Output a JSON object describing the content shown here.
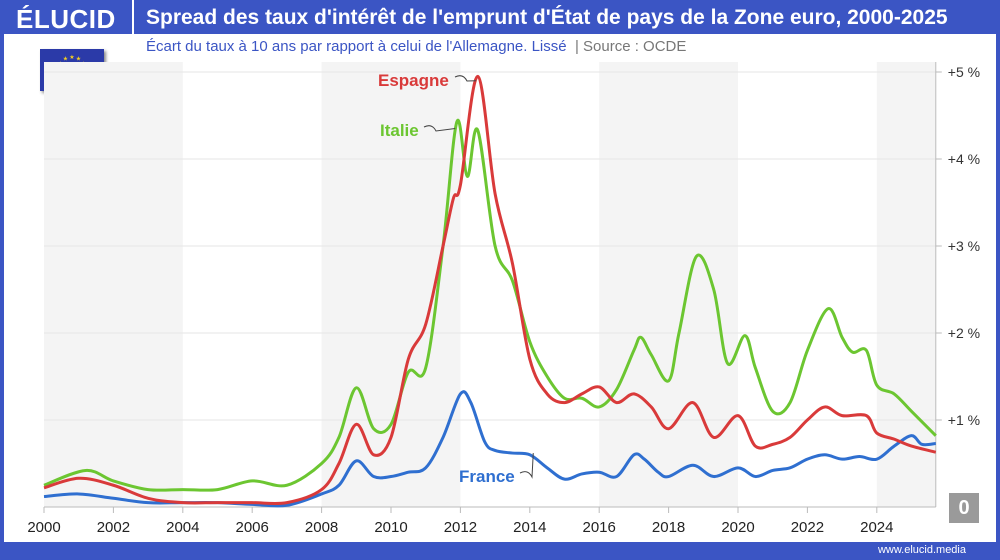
{
  "header": {
    "logo": "ÉLUCID",
    "title": "Spread des taux d'intérêt de l'emprunt d'État de pays de la Zone euro, 2000-2025",
    "subtitle": "Écart du taux à 10 ans par rapport à celui de l'Allemagne. Lissé",
    "source": "|  Source : OCDE"
  },
  "footer": {
    "url": "www.elucid.media"
  },
  "zero_badge": "0",
  "colors": {
    "frame": "#3b55c4",
    "Espagne": "#d93a3a",
    "Italie": "#6cc631",
    "France": "#2f6fd0"
  },
  "chart_data": {
    "type": "line",
    "xlim": [
      2000,
      2025.7
    ],
    "ylim": [
      0,
      5
    ],
    "x_ticks": [
      "2000",
      "2002",
      "2004",
      "2006",
      "2008",
      "2010",
      "2012",
      "2014",
      "2016",
      "2018",
      "2020",
      "2022",
      "2024"
    ],
    "y_ticks": [
      "+1 %",
      "+2 %",
      "+3 %",
      "+4 %",
      "+5 %"
    ],
    "grid": "horizontal",
    "shaded_bands": [
      [
        2000,
        2004
      ],
      [
        2008,
        2012
      ],
      [
        2016,
        2020
      ],
      [
        2024,
        2025.7
      ]
    ],
    "series": [
      {
        "name": "Espagne",
        "x": [
          2000,
          2001,
          2002,
          2003,
          2004,
          2005,
          2006,
          2007,
          2008,
          2008.5,
          2009,
          2009.5,
          2010,
          2010.5,
          2011,
          2011.5,
          2011.8,
          2012,
          2012.5,
          2013,
          2013.5,
          2014,
          2014.5,
          2015,
          2015.5,
          2016,
          2016.5,
          2017,
          2017.5,
          2018,
          2018.7,
          2019.3,
          2020,
          2020.5,
          2021,
          2021.5,
          2022,
          2022.5,
          2023,
          2023.7,
          2024,
          2024.5,
          2025,
          2025.7
        ],
        "y": [
          0.22,
          0.33,
          0.25,
          0.1,
          0.05,
          0.05,
          0.05,
          0.05,
          0.2,
          0.5,
          0.95,
          0.6,
          0.8,
          1.7,
          2.1,
          3.0,
          3.55,
          3.7,
          4.95,
          3.6,
          2.8,
          1.7,
          1.3,
          1.2,
          1.3,
          1.38,
          1.2,
          1.3,
          1.15,
          0.9,
          1.2,
          0.8,
          1.05,
          0.7,
          0.72,
          0.8,
          1.0,
          1.15,
          1.05,
          1.05,
          0.85,
          0.78,
          0.7,
          0.63
        ]
      },
      {
        "name": "Italie",
        "x": [
          2000,
          2001.2,
          2002,
          2003,
          2004,
          2005,
          2006,
          2007,
          2008,
          2008.5,
          2009,
          2009.5,
          2010,
          2010.5,
          2011,
          2011.5,
          2011.9,
          2012.2,
          2012.5,
          2013,
          2013.5,
          2014,
          2014.5,
          2015,
          2015.5,
          2016,
          2016.5,
          2017,
          2017.2,
          2017.5,
          2018,
          2018.3,
          2018.8,
          2019.3,
          2019.7,
          2020.2,
          2020.5,
          2021,
          2021.5,
          2022,
          2022.6,
          2023,
          2023.3,
          2023.7,
          2024,
          2024.5,
          2025,
          2025.7
        ],
        "y": [
          0.25,
          0.42,
          0.3,
          0.2,
          0.2,
          0.2,
          0.3,
          0.25,
          0.5,
          0.8,
          1.37,
          0.9,
          0.95,
          1.55,
          1.6,
          3.0,
          4.43,
          3.8,
          4.33,
          3.0,
          2.6,
          1.9,
          1.5,
          1.25,
          1.25,
          1.15,
          1.35,
          1.8,
          1.95,
          1.75,
          1.45,
          2.0,
          2.88,
          2.5,
          1.65,
          1.97,
          1.6,
          1.1,
          1.2,
          1.8,
          2.28,
          1.95,
          1.78,
          1.8,
          1.4,
          1.3,
          1.1,
          0.82
        ]
      },
      {
        "name": "France",
        "x": [
          2000,
          2001,
          2002,
          2003,
          2004,
          2005,
          2006,
          2007,
          2008,
          2008.5,
          2009,
          2009.5,
          2010,
          2010.5,
          2011,
          2011.5,
          2012,
          2012.3,
          2012.7,
          2013,
          2013.5,
          2014,
          2014.5,
          2015,
          2015.5,
          2016,
          2016.5,
          2017,
          2017.3,
          2017.7,
          2018,
          2018.7,
          2019.3,
          2020,
          2020.5,
          2021,
          2021.5,
          2022,
          2022.5,
          2023,
          2023.5,
          2024,
          2024.5,
          2025,
          2025.3,
          2025.7
        ],
        "y": [
          0.12,
          0.15,
          0.1,
          0.05,
          0.05,
          0.05,
          0.03,
          0.02,
          0.15,
          0.25,
          0.53,
          0.35,
          0.35,
          0.4,
          0.45,
          0.8,
          1.3,
          1.2,
          0.75,
          0.65,
          0.62,
          0.6,
          0.45,
          0.32,
          0.38,
          0.4,
          0.35,
          0.6,
          0.55,
          0.4,
          0.35,
          0.48,
          0.35,
          0.45,
          0.35,
          0.42,
          0.45,
          0.55,
          0.6,
          0.55,
          0.58,
          0.55,
          0.7,
          0.82,
          0.72,
          0.73
        ]
      }
    ]
  }
}
